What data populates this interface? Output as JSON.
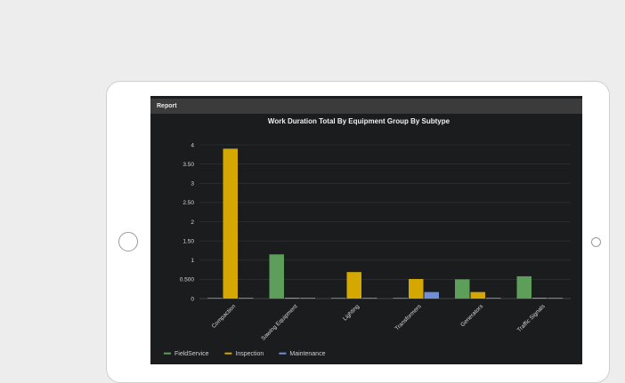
{
  "header": {
    "title": "Report"
  },
  "chart_data": {
    "type": "bar",
    "title": "Work Duration Total By Equipment Group By Subtype",
    "categories": [
      "Compaction",
      "Sawing Equipment",
      "Lighting",
      "Transformers",
      "Generators",
      "Traffic Signals"
    ],
    "series": [
      {
        "name": "FieldService",
        "color": "#5d9e5a",
        "values": [
          0,
          1.15,
          0,
          0,
          0.5,
          0.58
        ]
      },
      {
        "name": "Inspection",
        "color": "#d4a800",
        "values": [
          3.9,
          0,
          0.69,
          0.51,
          0.17,
          0
        ]
      },
      {
        "name": "Maintenance",
        "color": "#6f8fd6",
        "values": [
          0,
          0,
          0,
          0.17,
          0,
          0
        ]
      }
    ],
    "y_ticks": [
      "0",
      "0.500",
      "1",
      "1.50",
      "2",
      "2.50",
      "3",
      "3.50",
      "4"
    ],
    "ylim": [
      0,
      4
    ],
    "grid": true,
    "legend_position": "bottom-left"
  }
}
